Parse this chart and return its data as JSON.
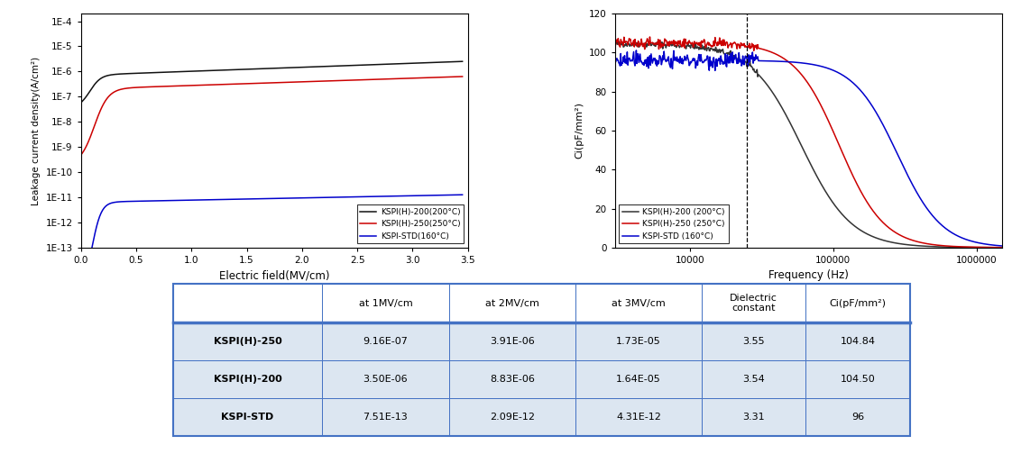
{
  "left_plot": {
    "xlabel": "Electric field(MV/cm)",
    "ylabel": "Leakage current density(A/cm²)",
    "xlim": [
      0.0,
      3.5
    ],
    "ylim": [
      1e-13,
      0.0002
    ],
    "xticks": [
      0.0,
      0.5,
      1.0,
      1.5,
      2.0,
      2.5,
      3.0,
      3.5
    ],
    "ytick_vals": [
      0.0001,
      1e-05,
      1e-06,
      1e-07,
      1e-08,
      1e-09,
      1e-10,
      1e-11,
      1e-12,
      1e-13
    ],
    "ytick_labels": [
      "1E-4",
      "1E-5",
      "1E-6",
      "1E-7",
      "1E-8",
      "1E-9",
      "1E-10",
      "1E-11",
      "1E-12",
      "1E-13"
    ],
    "legend": [
      {
        "label": "KSPI(H)-200(200°C)",
        "color": "#111111"
      },
      {
        "label": "KSPI(H)-250(250°C)",
        "color": "#cc0000"
      },
      {
        "label": "KSPI-STD(160°C)",
        "color": "#0000cc"
      }
    ]
  },
  "right_plot": {
    "xlabel": "Frequency (Hz)",
    "ylabel": "Ci(pF/mm²)",
    "xlim": [
      3000,
      1500000
    ],
    "ylim": [
      0,
      120
    ],
    "yticks": [
      0,
      20,
      40,
      60,
      80,
      100,
      120
    ],
    "xtick_vals": [
      10000,
      100000,
      1000000
    ],
    "xtick_labels": [
      "10000",
      "100000",
      "1000000"
    ],
    "dashed_x": 25000,
    "legend": [
      {
        "label": "KSPI(H)-200 (200°C)",
        "color": "#333333"
      },
      {
        "label": "KSPI(H)-250 (250°C)",
        "color": "#cc0000"
      },
      {
        "label": "KSPI-STD (160°C)",
        "color": "#0000cc"
      }
    ]
  },
  "table": {
    "col_labels": [
      "",
      "at 1MV/cm",
      "at 2MV/cm",
      "at 3MV/cm",
      "Dielectric\nconstant",
      "Ci(pF/mm²)"
    ],
    "rows": [
      [
        "KSPI(H)-250",
        "9.16E-07",
        "3.91E-06",
        "1.73E-05",
        "3.55",
        "104.84"
      ],
      [
        "KSPI(H)-200",
        "3.50E-06",
        "8.83E-06",
        "1.64E-05",
        "3.54",
        "104.50"
      ],
      [
        "KSPI-STD",
        "7.51E-13",
        "2.09E-12",
        "4.31E-12",
        "3.31",
        "96"
      ]
    ],
    "header_bg": "#ffffff",
    "row_bg": "#dce6f1",
    "border_color": "#4472c4"
  }
}
